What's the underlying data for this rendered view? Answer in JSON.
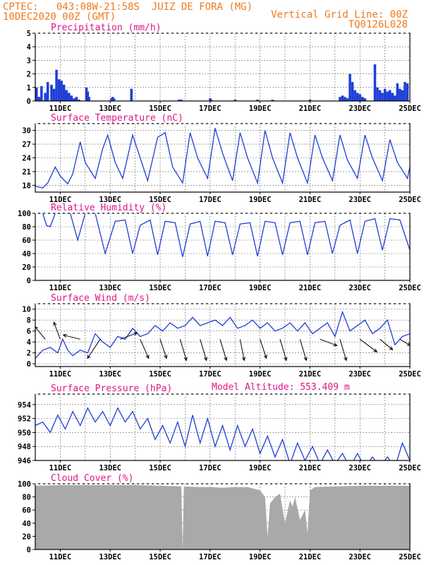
{
  "header": {
    "line1_left": "CPTEC:   043:08W-21:58S  JUIZ DE FORA (MG)",
    "line2_left": "10DEC2020 00Z (GMT)",
    "line1_right": "Vertical Grid Line: 00Z",
    "line2_right": "TQ0126L028"
  },
  "colors": {
    "header": "#ee7a1e",
    "title": "#e0148a",
    "series": "#1f3fd6",
    "cloud": "#a9a9a9",
    "arrow": "#000000",
    "grid": "#666666"
  },
  "x_axis": {
    "start": "10DEC2020 00Z",
    "end": "25DEC2020 00Z",
    "tick_labels": [
      "11DEC",
      "13DEC",
      "15DEC",
      "17DEC",
      "19DEC",
      "21DEC",
      "23DEC",
      "25DEC"
    ],
    "grid_lines_every_day_at": "00Z"
  },
  "extra_labels": {
    "model_altitude": "Model Altitude: 553.409 m"
  },
  "chart_data": [
    {
      "type": "bar",
      "title": "Precipitation (mm/h)",
      "ylim": [
        0,
        5
      ],
      "yticks": [
        0,
        1,
        2,
        3,
        4,
        5
      ],
      "x_unit": "days since 10DEC2020 00Z",
      "series": [
        {
          "x": [
            0.05,
            0.15,
            0.25,
            0.4,
            0.5,
            0.65,
            0.75,
            0.85,
            0.95,
            1.05,
            1.15,
            1.25,
            1.35,
            1.45,
            1.55,
            1.65,
            1.75,
            2.05,
            2.1,
            2.15,
            3.05,
            3.1,
            3.15,
            3.85,
            5.75,
            5.85,
            7.0,
            7.05,
            8.0,
            8.9,
            9.5,
            11.0,
            12.2,
            12.3,
            12.4,
            12.5,
            12.6,
            12.7,
            12.8,
            12.9,
            13.0,
            13.1,
            13.2,
            13.6,
            13.7,
            13.8,
            13.9,
            14.0,
            14.1,
            14.2,
            14.3,
            14.4,
            14.5,
            14.6,
            14.7,
            14.8,
            14.9
          ],
          "values": [
            1.0,
            0.3,
            1.1,
            0.6,
            1.4,
            1.2,
            0.9,
            2.3,
            1.6,
            1.5,
            1.2,
            0.8,
            0.6,
            0.4,
            0.2,
            0.3,
            0.1,
            1.0,
            0.7,
            0.3,
            0.2,
            0.3,
            0.2,
            0.9,
            0.1,
            0.1,
            0.2,
            0.1,
            0.1,
            0.1,
            0.1,
            0.1,
            0.3,
            0.4,
            0.3,
            0.2,
            2.0,
            1.4,
            0.8,
            0.6,
            0.5,
            0.3,
            0.2,
            2.7,
            1.0,
            0.8,
            0.6,
            0.9,
            0.7,
            0.8,
            0.6,
            0.4,
            1.3,
            0.9,
            0.8,
            1.4,
            1.3
          ]
        }
      ]
    },
    {
      "type": "line",
      "title": "Surface Temperature (nC)",
      "ylim": [
        16.5,
        31.5
      ],
      "yticks": [
        18,
        21,
        24,
        27,
        30
      ],
      "x_unit": "days since 10DEC2020 00Z",
      "series": [
        {
          "x": [
            0.0,
            0.3,
            0.5,
            0.8,
            1.0,
            1.3,
            1.5,
            1.8,
            2.0,
            2.4,
            2.7,
            2.9,
            3.2,
            3.5,
            3.9,
            4.2,
            4.5,
            4.9,
            5.2,
            5.5,
            5.9,
            6.2,
            6.5,
            6.9,
            7.2,
            7.5,
            7.9,
            8.2,
            8.5,
            8.9,
            9.2,
            9.5,
            9.9,
            10.2,
            10.5,
            10.9,
            11.2,
            11.5,
            11.9,
            12.2,
            12.5,
            12.9,
            13.2,
            13.5,
            13.9,
            14.2,
            14.5,
            14.9,
            15.0
          ],
          "values": [
            17.8,
            17.4,
            18.5,
            22.0,
            20.0,
            18.3,
            20.5,
            27.5,
            23.0,
            19.5,
            26.0,
            29.0,
            23.0,
            19.5,
            29.0,
            24.0,
            19.0,
            28.5,
            29.5,
            22.0,
            18.5,
            29.5,
            24.0,
            19.5,
            30.5,
            25.0,
            19.0,
            29.5,
            24.0,
            18.5,
            30.0,
            24.0,
            18.5,
            29.5,
            24.0,
            18.5,
            29.0,
            24.0,
            19.0,
            29.0,
            23.5,
            19.5,
            29.0,
            24.0,
            19.0,
            28.0,
            23.0,
            19.5,
            22.0
          ]
        }
      ]
    },
    {
      "type": "line",
      "title": "Relative Humidity (%)",
      "ylim": [
        0,
        100
      ],
      "yticks": [
        0,
        20,
        40,
        60,
        80,
        100
      ],
      "x_unit": "days since 10DEC2020 00Z",
      "series": [
        {
          "x": [
            0.0,
            0.3,
            0.45,
            0.6,
            0.8,
            1.0,
            1.4,
            1.7,
            2.0,
            2.4,
            2.8,
            3.2,
            3.6,
            3.9,
            4.2,
            4.6,
            4.9,
            5.2,
            5.6,
            5.9,
            6.2,
            6.6,
            6.9,
            7.2,
            7.6,
            7.9,
            8.2,
            8.6,
            8.9,
            9.2,
            9.6,
            9.9,
            10.2,
            10.6,
            10.9,
            11.2,
            11.6,
            11.9,
            12.2,
            12.6,
            12.9,
            13.2,
            13.6,
            13.9,
            14.2,
            14.6,
            15.0
          ],
          "values": [
            100,
            100,
            82,
            80,
            100,
            100,
            100,
            60,
            100,
            100,
            40,
            88,
            90,
            40,
            82,
            90,
            38,
            88,
            86,
            35,
            84,
            88,
            36,
            88,
            86,
            38,
            84,
            86,
            36,
            88,
            86,
            38,
            86,
            88,
            38,
            86,
            88,
            40,
            82,
            90,
            40,
            88,
            92,
            45,
            92,
            90,
            45
          ]
        }
      ]
    },
    {
      "type": "line",
      "title": "Surface Wind (m/s)",
      "ylim": [
        -0.5,
        11
      ],
      "yticks": [
        0,
        2,
        4,
        6,
        8,
        10
      ],
      "x_unit": "days since 10DEC2020 00Z",
      "series": [
        {
          "x": [
            0.0,
            0.3,
            0.6,
            0.9,
            1.1,
            1.3,
            1.5,
            1.8,
            2.1,
            2.4,
            2.7,
            3.0,
            3.3,
            3.6,
            3.9,
            4.2,
            4.5,
            4.8,
            5.1,
            5.4,
            5.7,
            6.0,
            6.3,
            6.6,
            6.9,
            7.2,
            7.5,
            7.8,
            8.1,
            8.4,
            8.7,
            9.0,
            9.3,
            9.6,
            9.9,
            10.2,
            10.5,
            10.8,
            11.1,
            11.4,
            11.7,
            12.0,
            12.3,
            12.6,
            12.9,
            13.2,
            13.5,
            13.8,
            14.1,
            14.4,
            14.7,
            15.0
          ],
          "values": [
            1.0,
            2.5,
            3.0,
            2.0,
            4.5,
            2.5,
            1.5,
            2.5,
            2.0,
            5.5,
            4.0,
            3.0,
            5.0,
            4.5,
            6.5,
            5.0,
            5.5,
            7.0,
            6.0,
            7.5,
            6.5,
            7.0,
            8.5,
            7.0,
            7.5,
            8.0,
            7.0,
            8.5,
            6.5,
            7.0,
            8.0,
            6.5,
            7.5,
            6.0,
            6.5,
            7.5,
            6.0,
            7.5,
            5.5,
            6.5,
            7.5,
            5.0,
            9.5,
            6.0,
            7.0,
            8.0,
            5.5,
            6.5,
            8.0,
            3.5,
            5.0,
            5.5
          ]
        }
      ],
      "wind_vectors": {
        "x": [
          0.4,
          1.0,
          1.8,
          2.6,
          3.4,
          4.2,
          5.0,
          5.8,
          6.6,
          7.4,
          8.2,
          9.0,
          9.8,
          10.6,
          11.4,
          12.2,
          13.0,
          13.8,
          14.6
        ],
        "u": [
          -0.5,
          -0.3,
          -0.8,
          -0.6,
          0.8,
          0.4,
          0.3,
          0.3,
          0.3,
          0.3,
          0.2,
          0.3,
          0.3,
          0.3,
          0.8,
          0.3,
          0.8,
          0.6,
          0.5
        ],
        "v": [
          0.6,
          0.8,
          0.2,
          -0.9,
          0.3,
          -0.9,
          -0.9,
          -1.0,
          -1.0,
          -1.0,
          -1.0,
          -0.9,
          -1.0,
          -1.0,
          -0.3,
          -1.0,
          -0.6,
          -0.5,
          -0.3
        ]
      }
    },
    {
      "type": "line",
      "title": "Surface Pressure (hPa)",
      "ylim": [
        946,
        955.5
      ],
      "yticks": [
        946,
        948,
        950,
        952,
        954
      ],
      "x_unit": "days since 10DEC2020 00Z",
      "series": [
        {
          "x": [
            0.0,
            0.3,
            0.6,
            0.9,
            1.2,
            1.5,
            1.8,
            2.1,
            2.4,
            2.7,
            3.0,
            3.3,
            3.6,
            3.9,
            4.2,
            4.5,
            4.8,
            5.1,
            5.4,
            5.7,
            6.0,
            6.3,
            6.6,
            6.9,
            7.2,
            7.5,
            7.8,
            8.1,
            8.4,
            8.7,
            9.0,
            9.3,
            9.6,
            9.9,
            10.2,
            10.5,
            10.8,
            11.1,
            11.4,
            11.7,
            12.0,
            12.3,
            12.6,
            12.9,
            13.2,
            13.5,
            13.8,
            14.1,
            14.4,
            14.7,
            15.0
          ],
          "values": [
            951.0,
            951.5,
            950.0,
            952.5,
            950.5,
            953.0,
            951.0,
            953.5,
            951.5,
            953.0,
            951.0,
            953.5,
            951.5,
            953.0,
            950.5,
            952.0,
            949.0,
            951.0,
            948.5,
            951.5,
            948.0,
            952.5,
            948.5,
            952.0,
            948.0,
            951.0,
            947.5,
            951.0,
            948.0,
            950.5,
            947.0,
            949.5,
            946.5,
            949.0,
            945.5,
            948.5,
            946.0,
            948.0,
            945.5,
            947.5,
            945.5,
            947.0,
            945.0,
            947.0,
            945.0,
            946.5,
            945.0,
            946.5,
            945.0,
            948.5,
            946.0
          ]
        }
      ]
    },
    {
      "type": "area",
      "title": "Cloud Cover (%)",
      "ylim": [
        0,
        100
      ],
      "yticks": [
        0,
        20,
        40,
        60,
        80,
        100
      ],
      "x_unit": "days since 10DEC2020 00Z",
      "series": [
        {
          "x": [
            0.0,
            1.0,
            2.0,
            3.0,
            4.0,
            5.0,
            5.85,
            5.9,
            5.95,
            6.5,
            7.0,
            7.5,
            8.0,
            8.5,
            9.0,
            9.2,
            9.3,
            9.4,
            9.6,
            9.8,
            10.0,
            10.2,
            10.3,
            10.4,
            10.6,
            10.8,
            10.9,
            11.0,
            11.2,
            12.0,
            13.0,
            14.0,
            15.0
          ],
          "values": [
            97,
            98,
            98,
            98,
            98,
            97,
            96,
            0,
            96,
            95,
            95,
            94,
            95,
            95,
            90,
            80,
            20,
            70,
            80,
            85,
            40,
            75,
            65,
            80,
            45,
            60,
            25,
            90,
            95,
            96,
            97,
            97,
            97
          ]
        }
      ]
    }
  ]
}
